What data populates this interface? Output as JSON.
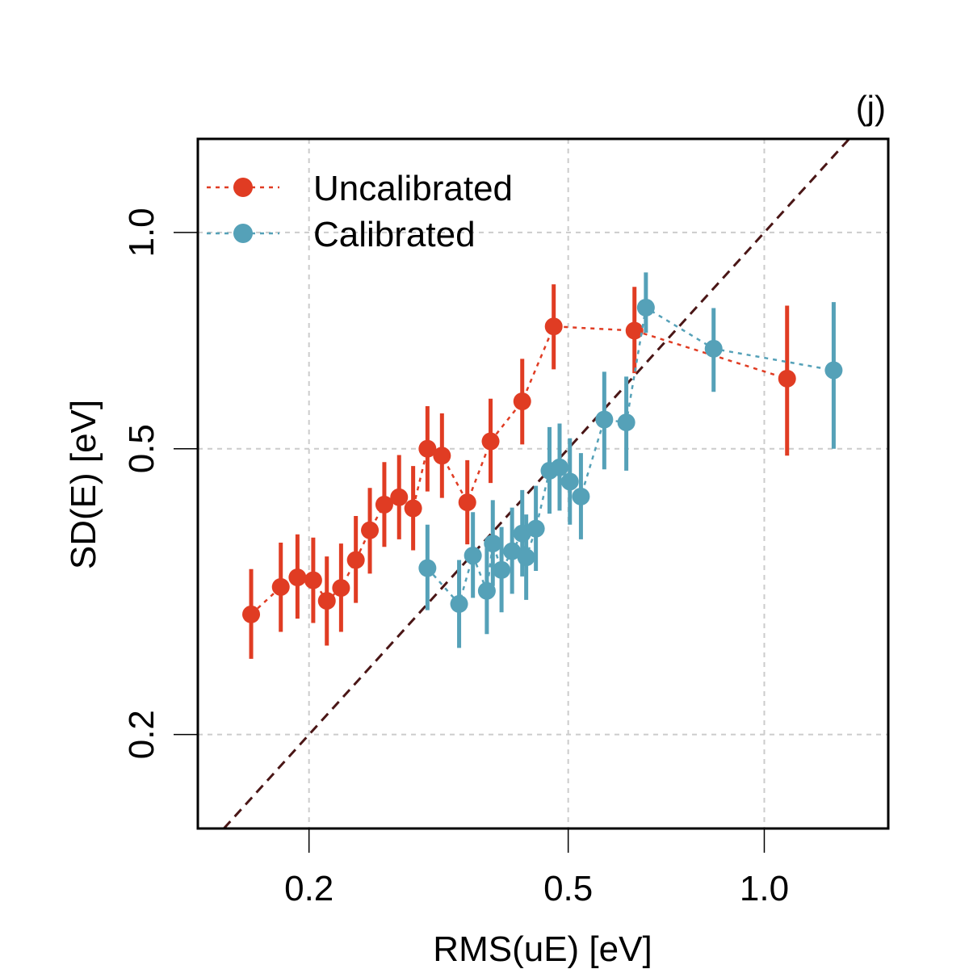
{
  "chart_data": {
    "type": "scatter",
    "panel_label": "(j)",
    "xlabel": "RMS(uE) [eV]",
    "ylabel": "SD(E) [eV]",
    "x_scale": "log",
    "y_scale": "log",
    "xlim": [
      0.135,
      1.55
    ],
    "ylim": [
      0.148,
      1.35
    ],
    "x_ticks": [
      0.2,
      0.5,
      1.0
    ],
    "x_tick_labels": [
      "0.2",
      "0.5",
      "1.0"
    ],
    "y_ticks": [
      0.2,
      0.5,
      1.0
    ],
    "y_tick_labels": [
      "0.2",
      "0.5",
      "1.0"
    ],
    "grid": true,
    "identity_line": true,
    "legend_position": "top-left",
    "series": [
      {
        "name": "Uncalibrated",
        "color": "#E03C23",
        "points": [
          {
            "x": 0.163,
            "y": 0.294,
            "lo": 0.255,
            "hi": 0.34
          },
          {
            "x": 0.181,
            "y": 0.321,
            "lo": 0.278,
            "hi": 0.37
          },
          {
            "x": 0.192,
            "y": 0.331,
            "lo": 0.29,
            "hi": 0.38
          },
          {
            "x": 0.203,
            "y": 0.328,
            "lo": 0.286,
            "hi": 0.376
          },
          {
            "x": 0.213,
            "y": 0.307,
            "lo": 0.266,
            "hi": 0.354
          },
          {
            "x": 0.224,
            "y": 0.32,
            "lo": 0.278,
            "hi": 0.369
          },
          {
            "x": 0.236,
            "y": 0.35,
            "lo": 0.305,
            "hi": 0.403
          },
          {
            "x": 0.248,
            "y": 0.385,
            "lo": 0.335,
            "hi": 0.441
          },
          {
            "x": 0.261,
            "y": 0.418,
            "lo": 0.365,
            "hi": 0.479
          },
          {
            "x": 0.275,
            "y": 0.428,
            "lo": 0.374,
            "hi": 0.49
          },
          {
            "x": 0.289,
            "y": 0.413,
            "lo": 0.361,
            "hi": 0.473
          },
          {
            "x": 0.304,
            "y": 0.5,
            "lo": 0.436,
            "hi": 0.573
          },
          {
            "x": 0.32,
            "y": 0.489,
            "lo": 0.427,
            "hi": 0.56
          },
          {
            "x": 0.35,
            "y": 0.421,
            "lo": 0.368,
            "hi": 0.482
          },
          {
            "x": 0.38,
            "y": 0.512,
            "lo": 0.448,
            "hi": 0.587
          },
          {
            "x": 0.425,
            "y": 0.582,
            "lo": 0.507,
            "hi": 0.667
          },
          {
            "x": 0.475,
            "y": 0.74,
            "lo": 0.645,
            "hi": 0.847
          },
          {
            "x": 0.632,
            "y": 0.73,
            "lo": 0.637,
            "hi": 0.84
          },
          {
            "x": 1.084,
            "y": 0.626,
            "lo": 0.489,
            "hi": 0.791
          }
        ]
      },
      {
        "name": "Calibrated",
        "color": "#55A1B8",
        "points": [
          {
            "x": 0.304,
            "y": 0.341,
            "lo": 0.298,
            "hi": 0.392
          },
          {
            "x": 0.34,
            "y": 0.304,
            "lo": 0.264,
            "hi": 0.35
          },
          {
            "x": 0.357,
            "y": 0.355,
            "lo": 0.31,
            "hi": 0.408
          },
          {
            "x": 0.375,
            "y": 0.317,
            "lo": 0.276,
            "hi": 0.364
          },
          {
            "x": 0.383,
            "y": 0.369,
            "lo": 0.322,
            "hi": 0.424
          },
          {
            "x": 0.395,
            "y": 0.339,
            "lo": 0.296,
            "hi": 0.389
          },
          {
            "x": 0.41,
            "y": 0.36,
            "lo": 0.314,
            "hi": 0.414
          },
          {
            "x": 0.425,
            "y": 0.381,
            "lo": 0.332,
            "hi": 0.438
          },
          {
            "x": 0.431,
            "y": 0.353,
            "lo": 0.308,
            "hi": 0.405
          },
          {
            "x": 0.446,
            "y": 0.387,
            "lo": 0.338,
            "hi": 0.444
          },
          {
            "x": 0.468,
            "y": 0.466,
            "lo": 0.406,
            "hi": 0.536
          },
          {
            "x": 0.485,
            "y": 0.471,
            "lo": 0.41,
            "hi": 0.542
          },
          {
            "x": 0.503,
            "y": 0.45,
            "lo": 0.392,
            "hi": 0.517
          },
          {
            "x": 0.523,
            "y": 0.429,
            "lo": 0.374,
            "hi": 0.493
          },
          {
            "x": 0.568,
            "y": 0.549,
            "lo": 0.468,
            "hi": 0.64
          },
          {
            "x": 0.614,
            "y": 0.544,
            "lo": 0.466,
            "hi": 0.63
          },
          {
            "x": 0.658,
            "y": 0.786,
            "lo": 0.725,
            "hi": 0.88
          },
          {
            "x": 0.836,
            "y": 0.689,
            "lo": 0.6,
            "hi": 0.785
          },
          {
            "x": 1.278,
            "y": 0.643,
            "lo": 0.5,
            "hi": 0.8
          }
        ]
      }
    ]
  }
}
